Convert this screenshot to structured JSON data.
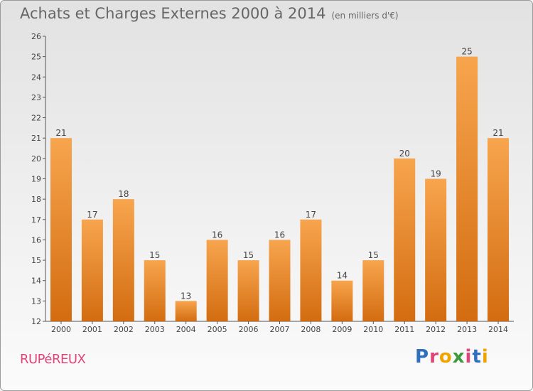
{
  "header": {
    "title": "Achats et Charges Externes 2000 à 2014",
    "unit": "(en milliers d'€)"
  },
  "footer": {
    "city": "RUPéREUX",
    "logo": "Proxiti",
    "logo_colors": [
      "#2f6fc0",
      "#e0457a",
      "#f0a400",
      "#3b9a3b",
      "#e0457a",
      "#2f6fc0",
      "#f0a400"
    ]
  },
  "colors": {
    "bar_top": "#f7a54e",
    "bar_bottom": "#d36c10",
    "text": "#666666",
    "city": "#e0457a"
  },
  "chart_data": {
    "type": "bar",
    "categories": [
      "2000",
      "2001",
      "2002",
      "2003",
      "2004",
      "2005",
      "2006",
      "2007",
      "2008",
      "2009",
      "2010",
      "2011",
      "2012",
      "2013",
      "2014"
    ],
    "values": [
      21,
      17,
      18,
      15,
      13,
      16,
      15,
      16,
      17,
      14,
      15,
      20,
      19,
      25,
      21
    ],
    "data_labels": [
      "21",
      "17",
      "18",
      "15",
      "13",
      "16",
      "15",
      "16",
      "17",
      "14",
      "15",
      "20",
      "19",
      "25",
      "21"
    ],
    "title": "Achats et Charges Externes 2000 à 2014",
    "ylim": [
      12,
      26
    ],
    "yticks": [
      "12",
      "13",
      "14",
      "15",
      "16",
      "17",
      "18",
      "19",
      "20",
      "21",
      "22",
      "23",
      "24",
      "25",
      "26"
    ],
    "grid": false,
    "legend": "none"
  }
}
